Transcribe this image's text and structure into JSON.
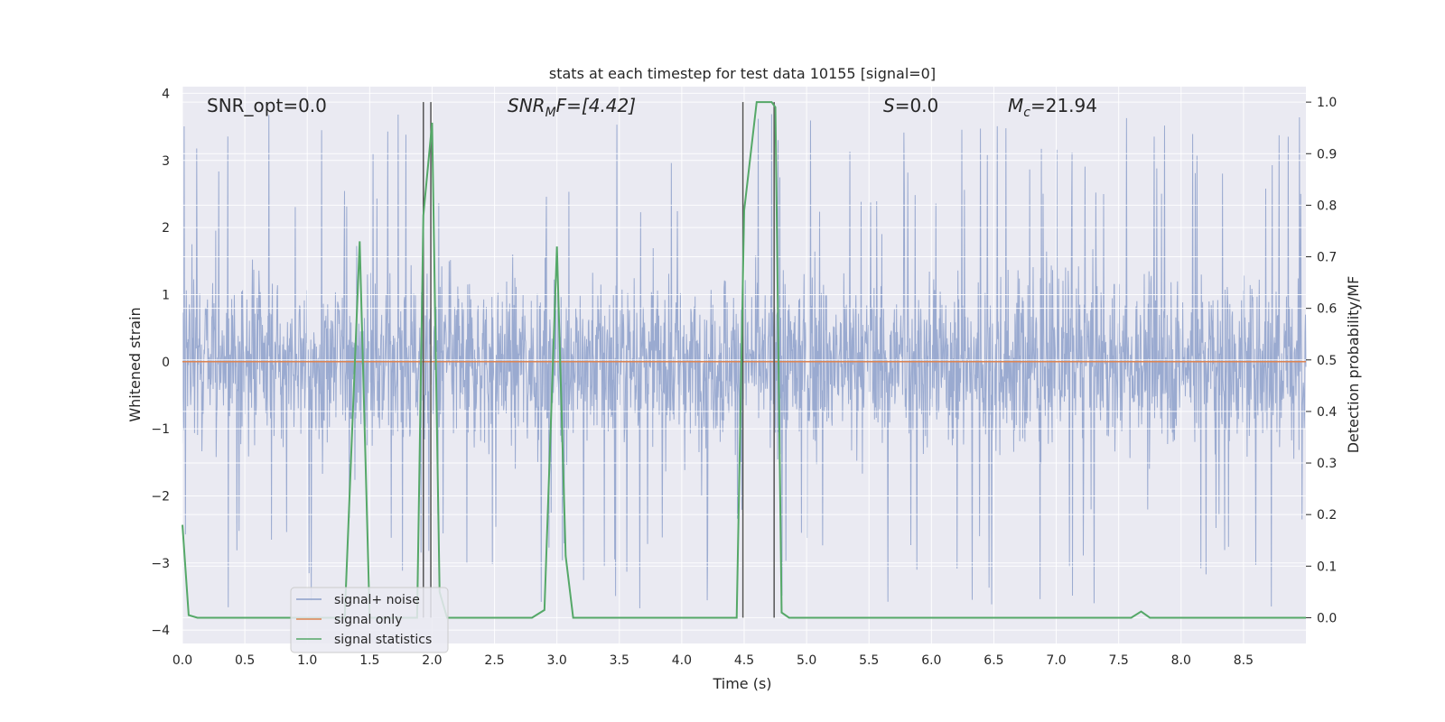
{
  "chart_data": {
    "type": "line",
    "title": "stats at each timestep for test data 10155 [signal=0]",
    "xlabel": "Time (s)",
    "ylabel": "Whitened strain",
    "ylabel_right": "Detection probability/MF",
    "xlim": [
      0.0,
      9.0
    ],
    "ylim": [
      -4.2,
      4.1
    ],
    "ylim_right": [
      -0.05,
      1.03
    ],
    "x_ticks": [
      "0.0",
      "0.5",
      "1.0",
      "1.5",
      "2.0",
      "2.5",
      "3.0",
      "3.5",
      "4.0",
      "4.5",
      "5.0",
      "5.5",
      "6.0",
      "6.5",
      "7.0",
      "7.5",
      "8.0",
      "8.5"
    ],
    "y_ticks": [
      "4",
      "3",
      "2",
      "1",
      "0",
      "−1",
      "−2",
      "−3",
      "−4"
    ],
    "y_ticks_right": [
      "1.0",
      "0.9",
      "0.8",
      "0.7",
      "0.6",
      "0.5",
      "0.4",
      "0.3",
      "0.2",
      "0.1",
      "0.0"
    ],
    "grid": true,
    "legend_placement": "lower-left",
    "annotations": {
      "snr_opt": "SNR_opt=0.0",
      "snr_mf_label": "SNR",
      "snr_mf_sub": "M",
      "snr_mf_rest": "F=[4.42]",
      "s_label": "S",
      "s_rest": "=0.0",
      "mc_label": "M",
      "mc_sub": "c",
      "mc_rest": "=21.94"
    },
    "series": [
      {
        "name": "signal+ noise",
        "color": "#8c9fca",
        "note_values": "dense whitened noise, approx. within [-3.9, 3.7], bulk within [-1.5, 1.7]"
      },
      {
        "name": "signal only",
        "color": "#dd8452",
        "values_const": 0.0
      },
      {
        "name": "signal statistics",
        "color": "#55a868",
        "axis": "right",
        "x": [
          0.0,
          0.05,
          0.12,
          0.3,
          0.8,
          1.3,
          1.42,
          1.5,
          1.58,
          1.88,
          1.93,
          2.0,
          2.06,
          2.12,
          2.2,
          2.8,
          2.9,
          3.0,
          3.07,
          3.13,
          3.5,
          4.0,
          4.44,
          4.5,
          4.6,
          4.72,
          4.75,
          4.8,
          4.86,
          5.0,
          6.0,
          7.0,
          7.6,
          7.68,
          7.75,
          8.0,
          9.0
        ],
        "values": [
          0.18,
          0.005,
          0.0,
          0.0,
          0.0,
          0.0,
          0.73,
          0.0,
          0.0,
          0.0,
          0.78,
          0.96,
          0.05,
          0.0,
          0.0,
          0.0,
          0.015,
          0.72,
          0.12,
          0.0,
          0.0,
          0.0,
          0.0,
          0.79,
          1.0,
          1.0,
          0.99,
          0.01,
          0.0,
          0.0,
          0.0,
          0.0,
          0.0,
          0.012,
          0.0,
          0.0,
          0.0
        ]
      }
    ],
    "vlines": [
      1.93,
      1.99,
      4.49,
      4.74
    ],
    "vline_color": "#555555",
    "axes_facecolor": "#eaeaf2",
    "grid_color": "#ffffff"
  }
}
